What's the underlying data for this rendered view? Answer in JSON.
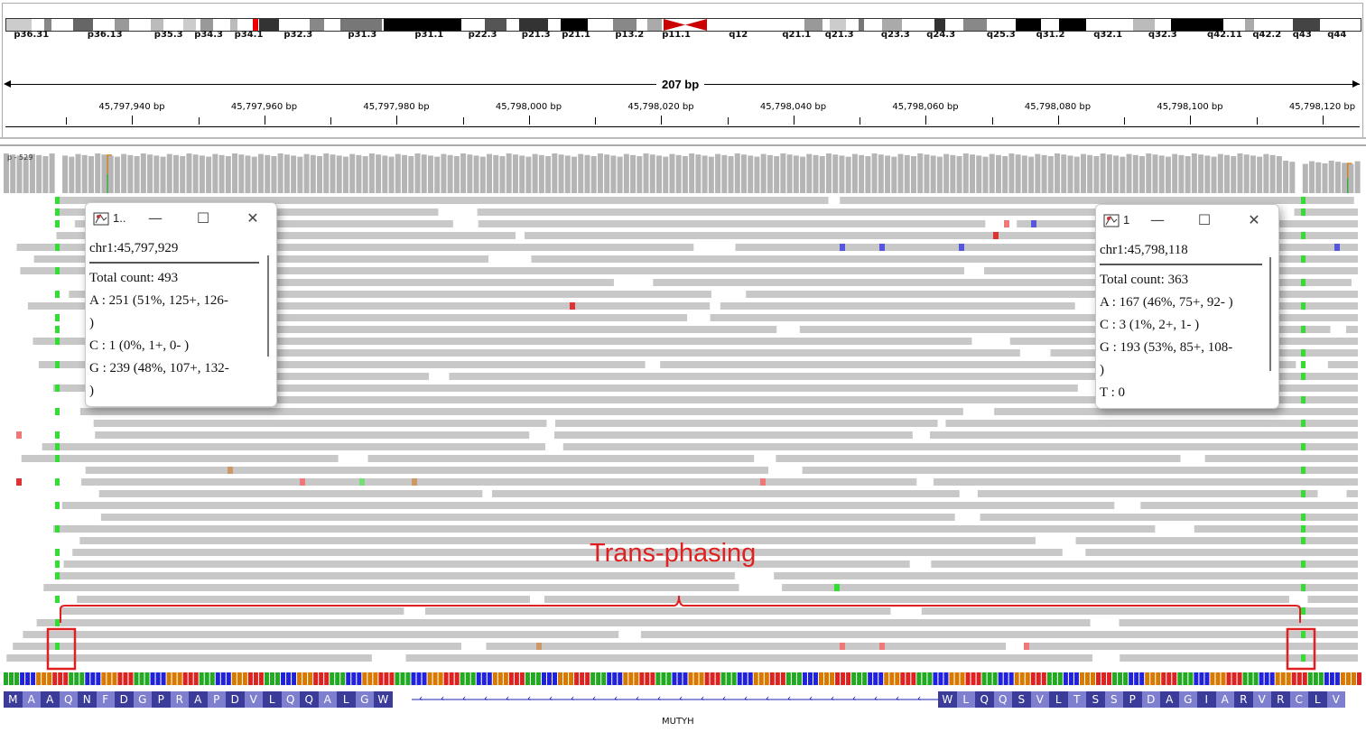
{
  "chromosome": {
    "bands": [
      {
        "label": "p36.31",
        "pos": 0.005
      },
      {
        "label": "p36.13",
        "pos": 0.06
      },
      {
        "label": "p35.3",
        "pos": 0.11
      },
      {
        "label": "p34.3",
        "pos": 0.14
      },
      {
        "label": "p34.1",
        "pos": 0.17
      },
      {
        "label": "p32.3",
        "pos": 0.207
      },
      {
        "label": "p31.3",
        "pos": 0.255
      },
      {
        "label": "p31.1",
        "pos": 0.305
      },
      {
        "label": "p22.3",
        "pos": 0.345
      },
      {
        "label": "p21.3",
        "pos": 0.385
      },
      {
        "label": "p21.1",
        "pos": 0.415
      },
      {
        "label": "p13.2",
        "pos": 0.455
      },
      {
        "label": "p11.1",
        "pos": 0.49
      },
      {
        "label": "q12",
        "pos": 0.54
      },
      {
        "label": "q21.1",
        "pos": 0.58
      },
      {
        "label": "q21.3",
        "pos": 0.612
      },
      {
        "label": "q23.3",
        "pos": 0.654
      },
      {
        "label": "q24.3",
        "pos": 0.688
      },
      {
        "label": "q25.3",
        "pos": 0.733
      },
      {
        "label": "q31.2",
        "pos": 0.77
      },
      {
        "label": "q32.1",
        "pos": 0.813
      },
      {
        "label": "q32.3",
        "pos": 0.854
      },
      {
        "label": "q42.11",
        "pos": 0.898
      },
      {
        "label": "q42.2",
        "pos": 0.932
      },
      {
        "label": "q43",
        "pos": 0.962
      },
      {
        "label": "q44",
        "pos": 0.988
      }
    ]
  },
  "ruler": {
    "span": "207 bp",
    "ticks": [
      "45,797,940 bp",
      "45,797,960 bp",
      "45,797,980 bp",
      "45,798,000 bp",
      "45,798,020 bp",
      "45,798,040 bp",
      "45,798,060 bp",
      "45,798,080 bp",
      "45,798,100 bp",
      "45,798,120 bp"
    ]
  },
  "coverage": {
    "label": "p - 529"
  },
  "popups": [
    {
      "title": "1..",
      "position": "chr1:45,797,929",
      "lines": [
        "Total count: 493",
        "A : 251 (51%, 125+, 126-",
        ")",
        "C : 1 (0%, 1+, 0- )",
        "G : 239 (48%, 107+, 132-",
        ")"
      ]
    },
    {
      "title": "1",
      "position": "chr1:45,798,118",
      "lines": [
        "Total count: 363",
        "A : 167 (46%, 75+, 92- )",
        "C : 3 (1%, 2+, 1- )",
        "G : 193 (53%, 85+, 108-",
        ")",
        "T : 0"
      ]
    }
  ],
  "window_buttons": {
    "minimize": "—",
    "maximize": "☐",
    "close": "✕"
  },
  "annotation": {
    "label": "Trans-phasing"
  },
  "amino_acids_left": [
    "M",
    "A",
    "A",
    "Q",
    "N",
    "F",
    "D",
    "G",
    "P",
    "R",
    "A",
    "P",
    "D",
    "V",
    "L",
    "Q",
    "Q",
    "A",
    "L",
    "G",
    "W"
  ],
  "amino_acids_right": [
    "W",
    "L",
    "Q",
    "Q",
    "S",
    "V",
    "L",
    "T",
    "S",
    "S",
    "P",
    "D",
    "A",
    "G",
    "I",
    "A",
    "R",
    "V",
    "R",
    "C",
    "L",
    "V"
  ],
  "gene": {
    "name": "MUTYH"
  },
  "colors": {
    "A": "#22aa22",
    "C": "#2222dd",
    "G": "#d97a00",
    "T": "#dd2222",
    "read": "#c8c8c8",
    "highlight": "#e02020",
    "aa_dark": "#3b3b9a",
    "aa_light": "#7f7fd0"
  }
}
